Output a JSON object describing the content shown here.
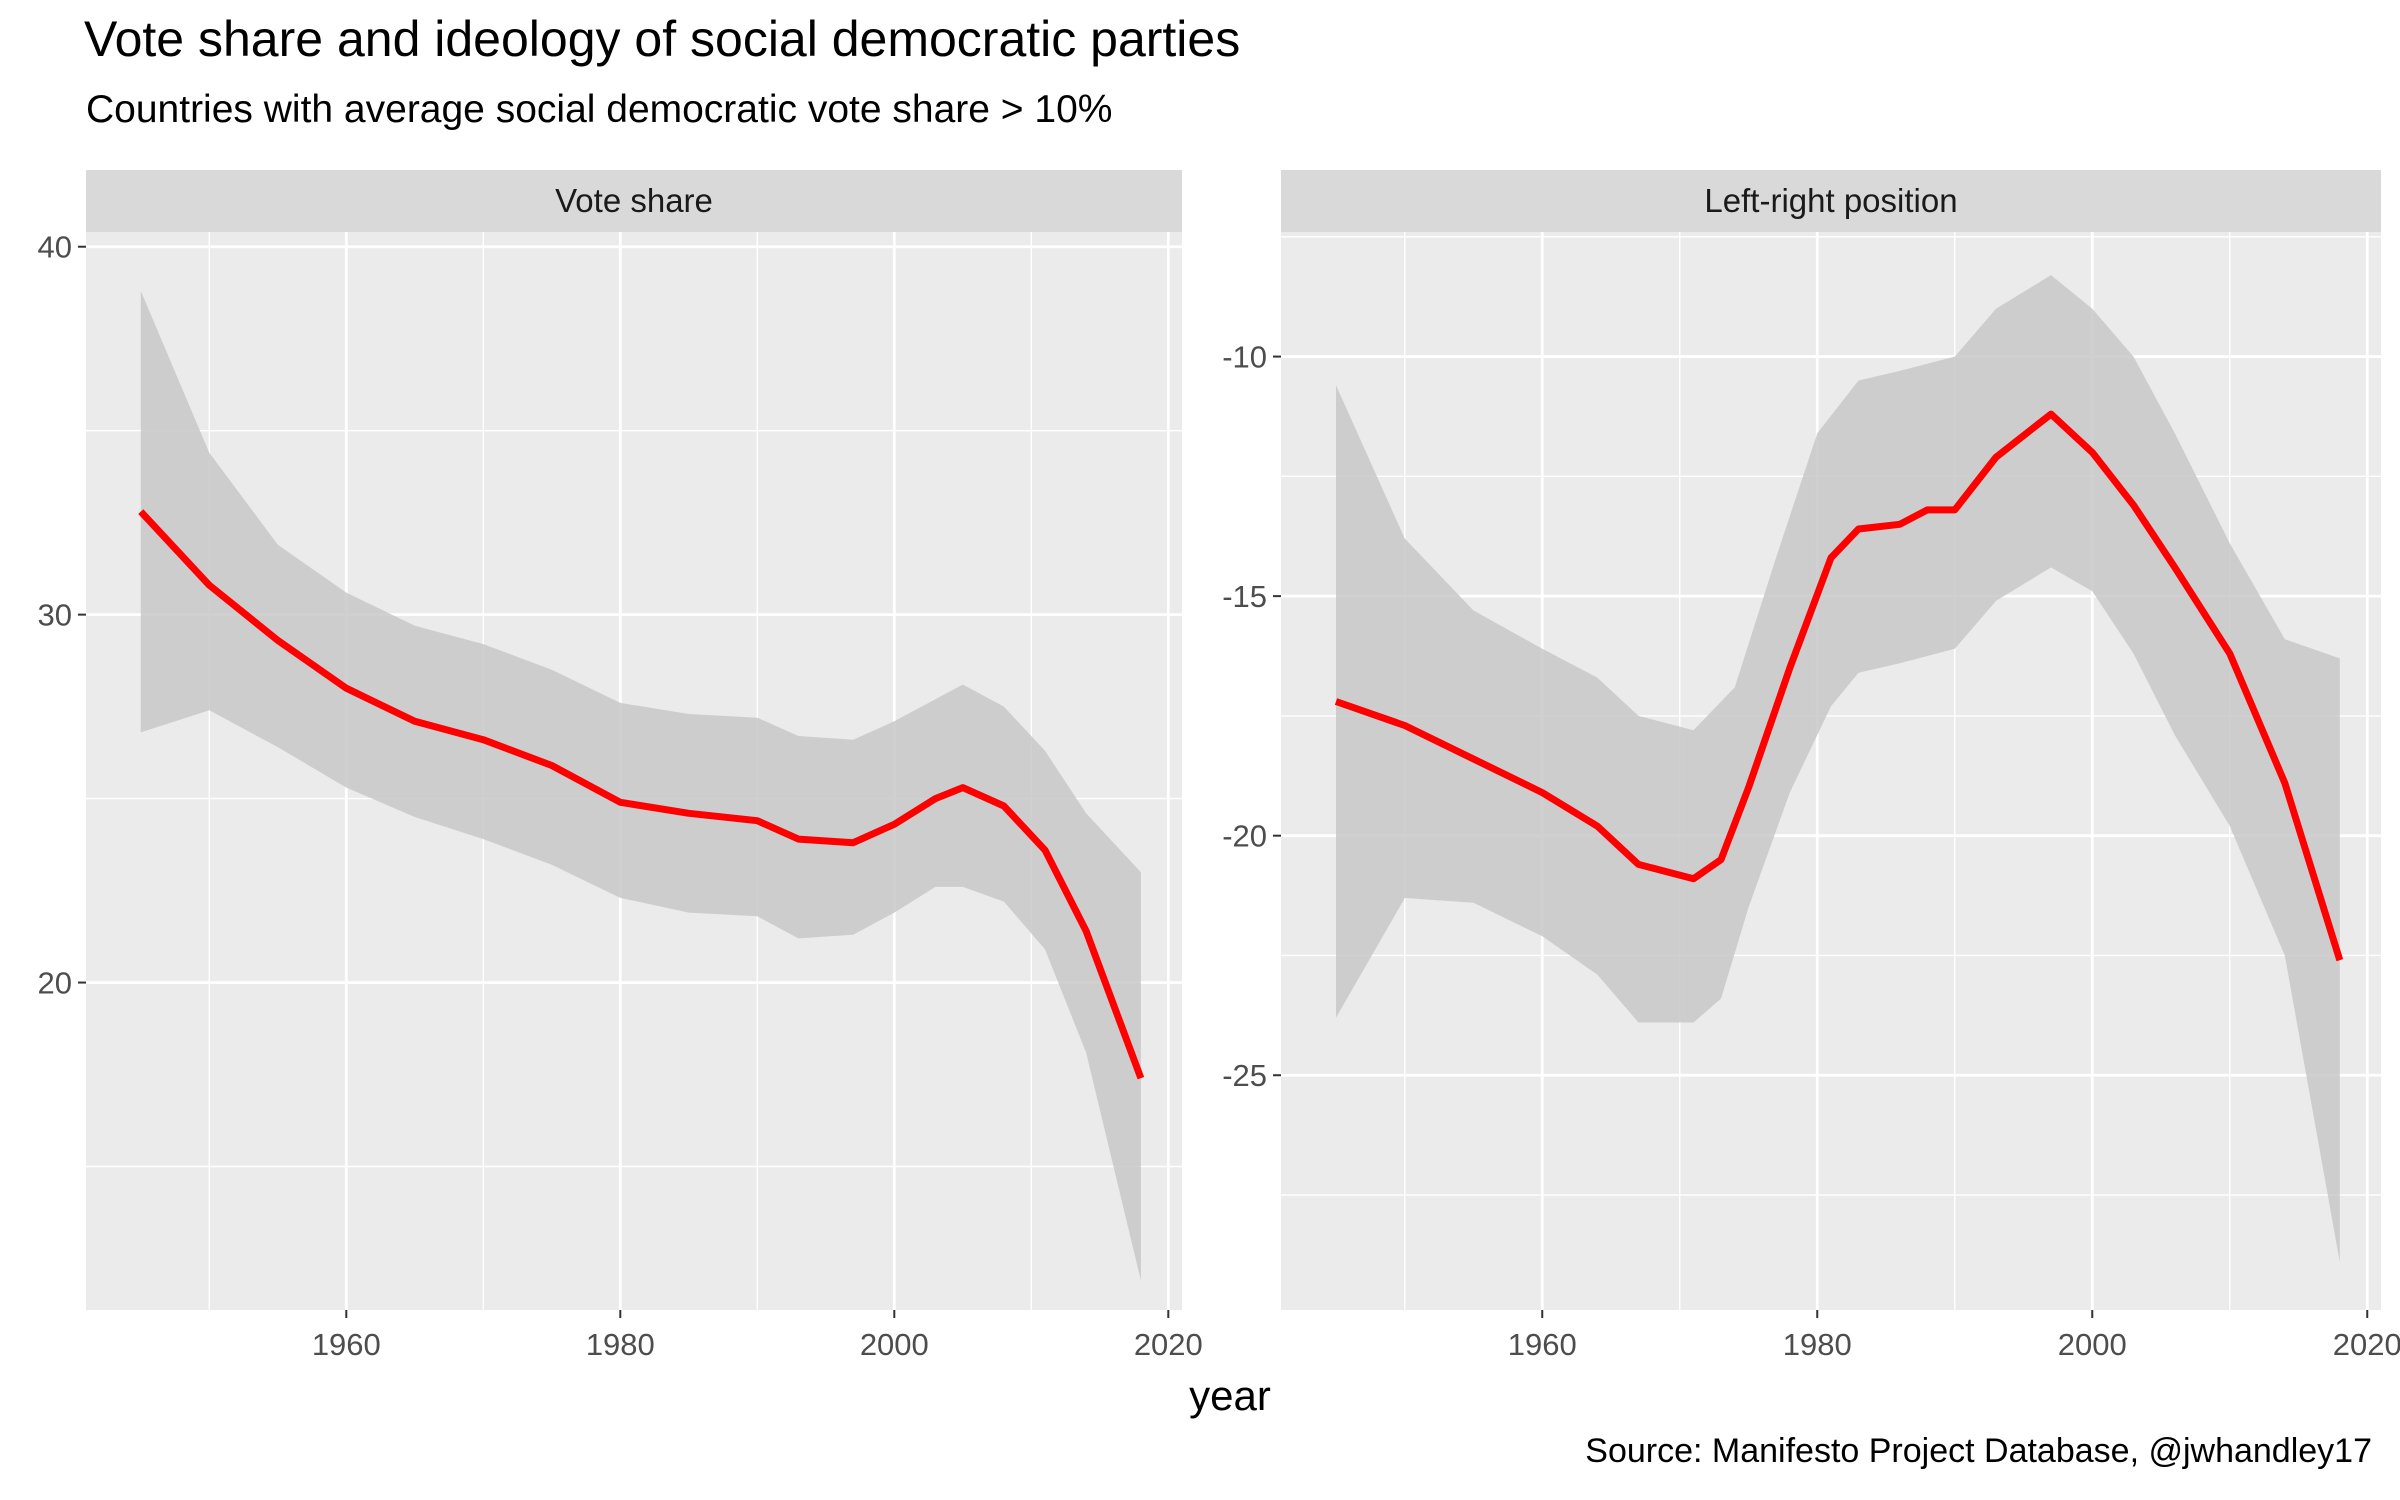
{
  "title": "Vote share and ideology of social democratic parties",
  "subtitle": "Countries with average social democratic vote share > 10%",
  "caption": "Source: Manifesto Project Database, @jwhandley17",
  "colors": {
    "panel_background": "#EBEBEB",
    "strip_background": "#D9D9D9",
    "grid": "#FFFFFF",
    "line": "#FF0000",
    "ribbon": "#C8C8C8"
  },
  "chart_data": {
    "type": "line",
    "title": "Vote share and ideology of social democratic parties",
    "subtitle": "Countries with average social democratic vote share > 10%",
    "xlabel": "year",
    "caption": "Source: Manifesto Project Database, @jwhandley17",
    "grid": true,
    "facets": [
      {
        "name": "Vote share",
        "xlim": [
          1941,
          2021
        ],
        "ylim": [
          11.1,
          40.4
        ],
        "x_ticks": [
          1960,
          1980,
          2000,
          2020
        ],
        "y_ticks": [
          20,
          30,
          40
        ],
        "series": [
          {
            "x": [
              1945,
              1950,
              1955,
              1960,
              1965,
              1970,
              1975,
              1980,
              1985,
              1990,
              1993,
              1997,
              2000,
              2003,
              2005,
              2008,
              2011,
              2014,
              2018
            ],
            "y": [
              32.8,
              30.8,
              29.3,
              28.0,
              27.1,
              26.6,
              25.9,
              24.9,
              24.6,
              24.4,
              23.9,
              23.8,
              24.3,
              25.0,
              25.3,
              24.8,
              23.6,
              21.4,
              17.4
            ],
            "lower": [
              26.8,
              27.4,
              26.4,
              25.3,
              24.5,
              23.9,
              23.2,
              22.3,
              21.9,
              21.8,
              21.2,
              21.3,
              21.9,
              22.6,
              22.6,
              22.2,
              20.9,
              18.1,
              11.9
            ],
            "upper": [
              38.8,
              34.4,
              31.9,
              30.6,
              29.7,
              29.2,
              28.5,
              27.6,
              27.3,
              27.2,
              26.7,
              26.6,
              27.1,
              27.7,
              28.1,
              27.5,
              26.3,
              24.6,
              23.0
            ]
          }
        ]
      },
      {
        "name": "Left-right position",
        "xlim": [
          1941,
          2021
        ],
        "ylim": [
          -29.9,
          -7.4
        ],
        "x_ticks": [
          1960,
          1980,
          2000,
          2020
        ],
        "y_ticks": [
          -25,
          -20,
          -15,
          -10
        ],
        "series": [
          {
            "x": [
              1945,
              1950,
              1955,
              1960,
              1964,
              1967,
              1971,
              1973,
              1975,
              1978,
              1981,
              1983,
              1986,
              1988,
              1990,
              1993,
              1997,
              2000,
              2003,
              2006,
              2010,
              2014,
              2018
            ],
            "y": [
              -17.2,
              -17.7,
              -18.4,
              -19.1,
              -19.8,
              -20.6,
              -20.9,
              -20.5,
              -19.0,
              -16.5,
              -14.2,
              -13.6,
              -13.5,
              -13.2,
              -13.2,
              -12.1,
              -11.2,
              -12.0,
              -13.1,
              -14.4,
              -16.2,
              -18.9,
              -22.6
            ]
          }
        ],
        "ribbon_upper": {
          "x": [
            1945,
            1950,
            1955,
            1960,
            1964,
            1967,
            1971,
            1974,
            1977,
            1980,
            1983,
            1986,
            1990,
            1993,
            1997,
            2000,
            2003,
            2006,
            2010,
            2014,
            2018
          ],
          "y": [
            -10.6,
            -13.8,
            -15.3,
            -16.1,
            -16.7,
            -17.5,
            -17.8,
            -16.9,
            -14.2,
            -11.6,
            -10.5,
            -10.3,
            -10.0,
            -9.0,
            -8.3,
            -9.0,
            -10.0,
            -11.6,
            -13.9,
            -15.9,
            -16.3
          ]
        },
        "ribbon_lower": {
          "x": [
            1945,
            1950,
            1955,
            1960,
            1964,
            1967,
            1971,
            1973,
            1975,
            1978,
            1981,
            1983,
            1986,
            1990,
            1993,
            1997,
            2000,
            2003,
            2006,
            2010,
            2014,
            2018
          ],
          "y": [
            -23.8,
            -21.3,
            -21.4,
            -22.1,
            -22.9,
            -23.9,
            -23.9,
            -23.4,
            -21.5,
            -19.1,
            -17.3,
            -16.6,
            -16.4,
            -16.1,
            -15.1,
            -14.4,
            -14.9,
            -16.2,
            -17.9,
            -19.8,
            -22.5,
            -28.9
          ]
        }
      }
    ]
  }
}
